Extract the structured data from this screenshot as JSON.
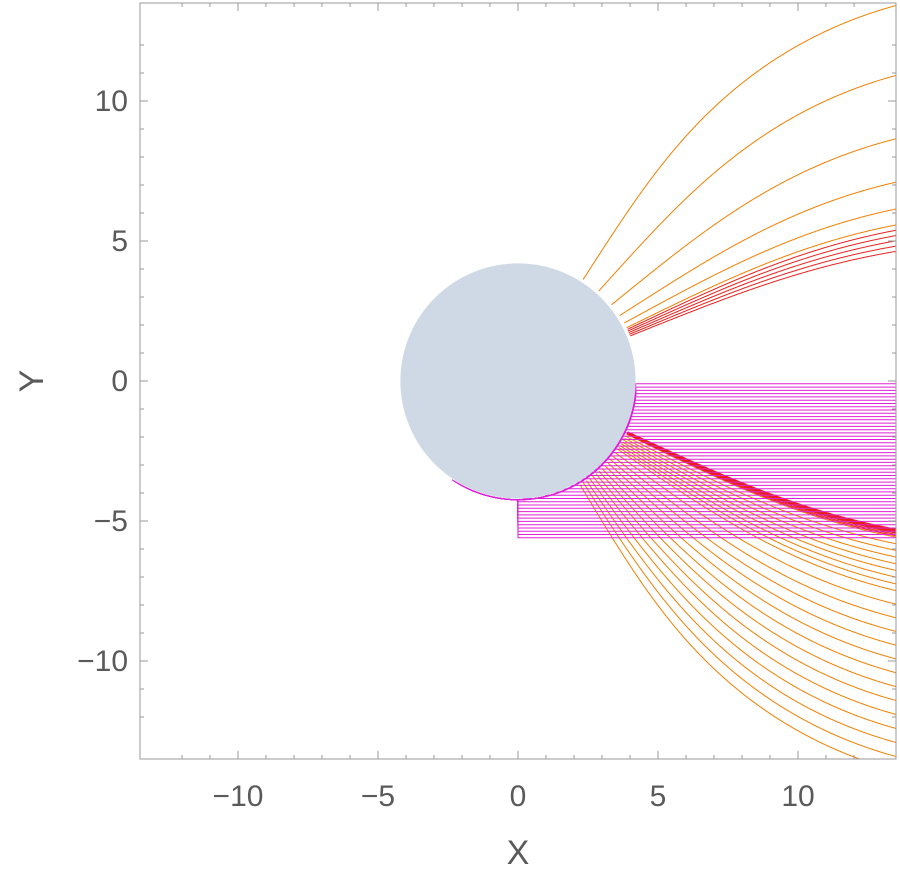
{
  "chart_data": {
    "type": "line",
    "title": "",
    "xlabel": "X",
    "ylabel": "Y",
    "xlim": [
      -13.5,
      13.5
    ],
    "ylim": [
      -13.5,
      13.5
    ],
    "x_ticks": [
      -10,
      -5,
      0,
      5,
      10
    ],
    "y_ticks": [
      -10,
      -5,
      0,
      5,
      10
    ],
    "x_tick_labels": [
      "−10",
      "−5",
      "0",
      "5",
      "10"
    ],
    "y_tick_labels": [
      "−10",
      "−5",
      "0",
      "5",
      "10"
    ],
    "grid": false,
    "legend": "none",
    "obstacle": {
      "shape": "circle",
      "center": [
        0,
        0
      ],
      "radius": 4.2,
      "fill": "#cfd9e6"
    },
    "series": [
      {
        "role": "outer",
        "color": "#f07f00",
        "impact_parameters": [
          -14.5,
          -14.0,
          -13.5,
          -13.0,
          -12.5,
          -12.0,
          -11.5,
          -11.0,
          -10.5,
          -10.0,
          -9.5,
          -9.0,
          -8.5,
          -8.0,
          -7.75,
          -7.5,
          -7.25,
          -7.0,
          -6.75,
          -6.5,
          -6.25,
          -6.0,
          6.0,
          6.6,
          7.6,
          9.2,
          11.5,
          14.0
        ]
      },
      {
        "role": "near-critical",
        "color": "#e8201c",
        "impact_parameters": [
          -5.95,
          -5.9,
          -5.85,
          -5.82,
          -5.8,
          -5.78,
          -5.76,
          -5.74,
          -5.72,
          -5.7,
          5.0,
          5.2,
          5.4,
          5.6,
          5.8
        ]
      },
      {
        "role": "captured",
        "color": "#e020d8",
        "y_range": [
          -5.6,
          -0.1
        ],
        "count": 48
      }
    ]
  },
  "colors": {
    "outer": "#f07f00",
    "critical": "#e8201c",
    "captured": "#e020d8",
    "obstacle": "#cfd9e6",
    "frame": "#9a9a9a"
  }
}
